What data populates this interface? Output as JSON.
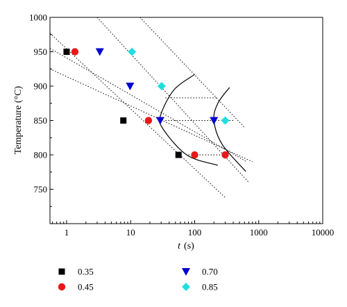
{
  "chart_data": {
    "type": "scatter",
    "xlabel_var": "t",
    "xlabel_unit": "(s)",
    "ylabel": "Temperature (°C)",
    "xscale": "log",
    "xlim": [
      0.55,
      10000
    ],
    "ylim": [
      700,
      1000
    ],
    "x_ticks": [
      1,
      10,
      100,
      1000,
      10000
    ],
    "x_tick_labels": [
      "1",
      "10",
      "100",
      "1000",
      "10000"
    ],
    "y_ticks": [
      750,
      800,
      850,
      900,
      950,
      1000
    ],
    "y_tick_labels": [
      "750",
      "800",
      "850",
      "900",
      "950",
      "1000"
    ],
    "legend_position": "bottom",
    "series": [
      {
        "name": "0.35",
        "marker": "square",
        "color": "#000000",
        "points": [
          [
            1.0,
            950
          ],
          [
            7.7,
            850
          ],
          [
            56,
            800
          ]
        ]
      },
      {
        "name": "0.45",
        "marker": "circle",
        "color": "#e81818",
        "points": [
          [
            1.35,
            950
          ],
          [
            19,
            850
          ],
          [
            100,
            800
          ],
          [
            300,
            800
          ]
        ]
      },
      {
        "name": "0.70",
        "marker": "triangle-down",
        "color": "#0000d0",
        "points": [
          [
            3.3,
            950
          ],
          [
            9.8,
            900
          ],
          [
            29,
            850
          ],
          [
            200,
            850
          ]
        ]
      },
      {
        "name": "0.85",
        "marker": "diamond",
        "color": "#22dddd",
        "points": [
          [
            10.5,
            950
          ],
          [
            30.5,
            900
          ],
          [
            300,
            850
          ]
        ]
      }
    ],
    "dotted_lines": [
      [
        [
          0.55,
          977
        ],
        [
          300,
          738
        ]
      ],
      [
        [
          0.55,
          955
        ],
        [
          650,
          790
        ]
      ],
      [
        [
          0.55,
          925
        ],
        [
          800,
          790
        ]
      ],
      [
        [
          3.0,
          1000
        ],
        [
          700,
          760
        ]
      ],
      [
        [
          14,
          1000
        ],
        [
          600,
          840
        ]
      ],
      [
        [
          35,
          883
        ],
        [
          230,
          883
        ]
      ],
      [
        [
          35,
          850
        ],
        [
          420,
          850
        ]
      ],
      [
        [
          80,
          800
        ],
        [
          330,
          800
        ]
      ]
    ],
    "solid_curves": [
      [
        [
          100,
          917
        ],
        [
          48,
          895
        ],
        [
          30,
          860
        ],
        [
          31,
          840
        ],
        [
          75,
          800
        ],
        [
          230,
          785
        ]
      ],
      [
        [
          350,
          898
        ],
        [
          230,
          875
        ],
        [
          200,
          850
        ],
        [
          270,
          815
        ],
        [
          630,
          776
        ]
      ]
    ]
  }
}
